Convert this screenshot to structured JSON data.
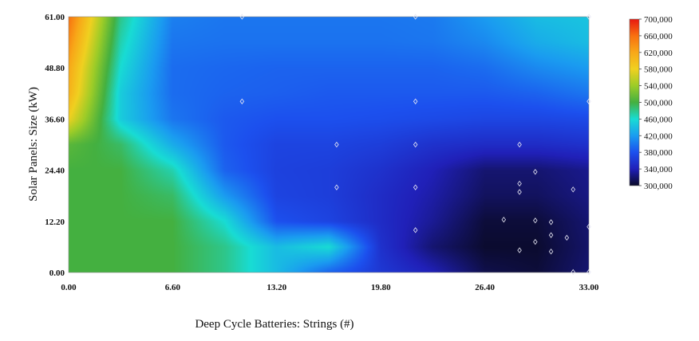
{
  "chart_data": {
    "type": "heatmap",
    "title": "",
    "xlabel": "Deep Cycle Batteries: Strings (#)",
    "ylabel": "Solar Panels: Size (kW)",
    "xlim": [
      0,
      33
    ],
    "ylim": [
      0,
      61
    ],
    "x_ticks": [
      "0.00",
      "6.60",
      "13.20",
      "19.80",
      "26.40",
      "33.00"
    ],
    "y_ticks": [
      "0.00",
      "12.20",
      "24.40",
      "36.60",
      "48.80",
      "61.00"
    ],
    "colorbar": {
      "range": [
        300000,
        700000
      ],
      "ticks": [
        "700,000",
        "660,000",
        "620,000",
        "580,000",
        "540,000",
        "500,000",
        "460,000",
        "420,000",
        "380,000",
        "340,000",
        "300,000"
      ],
      "stops": [
        {
          "value": 300000,
          "color": "#0a0a28"
        },
        {
          "value": 340000,
          "color": "#2020b8"
        },
        {
          "value": 380000,
          "color": "#1c50ee"
        },
        {
          "value": 420000,
          "color": "#1a9cf0"
        },
        {
          "value": 460000,
          "color": "#18dcd4"
        },
        {
          "value": 500000,
          "color": "#44b040"
        },
        {
          "value": 540000,
          "color": "#9ccc28"
        },
        {
          "value": 580000,
          "color": "#f0d020"
        },
        {
          "value": 620000,
          "color": "#f8a818"
        },
        {
          "value": 660000,
          "color": "#f87010"
        },
        {
          "value": 700000,
          "color": "#e81810"
        }
      ]
    },
    "grid_x": [
      0,
      3.3,
      6.6,
      9.9,
      13.2,
      16.5,
      19.8,
      23.1,
      26.4,
      29.7,
      33
    ],
    "grid_y": [
      0,
      6.1,
      12.2,
      18.3,
      24.4,
      30.5,
      36.6,
      42.7,
      48.8,
      54.9,
      61
    ],
    "z": [
      [
        500000,
        500000,
        500000,
        480000,
        440000,
        390000,
        360000,
        340000,
        310000,
        305000,
        320000
      ],
      [
        500000,
        500000,
        500000,
        480000,
        440000,
        460000,
        355000,
        320000,
        302000,
        302000,
        318000
      ],
      [
        500000,
        500000,
        500000,
        460000,
        380000,
        370000,
        350000,
        330000,
        305000,
        305000,
        320000
      ],
      [
        500000,
        500000,
        490000,
        420000,
        370000,
        365000,
        350000,
        335000,
        315000,
        315000,
        325000
      ],
      [
        500000,
        500000,
        470000,
        390000,
        368000,
        365000,
        355000,
        340000,
        320000,
        320000,
        328000
      ],
      [
        510000,
        490000,
        430000,
        385000,
        370000,
        370000,
        365000,
        355000,
        350000,
        350000,
        355000
      ],
      [
        580000,
        450000,
        400000,
        385000,
        380000,
        380000,
        378000,
        375000,
        372000,
        372000,
        375000
      ],
      [
        610000,
        450000,
        395000,
        390000,
        388000,
        385000,
        385000,
        385000,
        385000,
        390000,
        400000
      ],
      [
        620000,
        460000,
        395000,
        392000,
        390000,
        390000,
        390000,
        390000,
        395000,
        410000,
        420000
      ],
      [
        640000,
        470000,
        400000,
        398000,
        398000,
        398000,
        398000,
        400000,
        410000,
        430000,
        440000
      ],
      [
        660000,
        480000,
        405000,
        400000,
        400000,
        400000,
        400000,
        402000,
        420000,
        440000,
        445000
      ]
    ],
    "markers": [
      {
        "x": 11.0,
        "y": 61.0
      },
      {
        "x": 22.0,
        "y": 61.0
      },
      {
        "x": 33.0,
        "y": 61.0
      },
      {
        "x": 11.0,
        "y": 40.8
      },
      {
        "x": 22.0,
        "y": 40.8
      },
      {
        "x": 33.0,
        "y": 40.8
      },
      {
        "x": 17.0,
        "y": 30.5
      },
      {
        "x": 22.0,
        "y": 30.5
      },
      {
        "x": 28.6,
        "y": 30.5
      },
      {
        "x": 29.6,
        "y": 24.0
      },
      {
        "x": 17.0,
        "y": 20.3
      },
      {
        "x": 22.0,
        "y": 20.3
      },
      {
        "x": 28.6,
        "y": 21.2
      },
      {
        "x": 28.6,
        "y": 19.2
      },
      {
        "x": 32.0,
        "y": 19.8
      },
      {
        "x": 27.6,
        "y": 12.6
      },
      {
        "x": 29.6,
        "y": 12.4
      },
      {
        "x": 30.6,
        "y": 12.0
      },
      {
        "x": 22.0,
        "y": 10.1
      },
      {
        "x": 33.0,
        "y": 10.9
      },
      {
        "x": 30.6,
        "y": 8.9
      },
      {
        "x": 31.6,
        "y": 8.3
      },
      {
        "x": 29.6,
        "y": 7.3
      },
      {
        "x": 28.6,
        "y": 5.3
      },
      {
        "x": 30.6,
        "y": 5.0
      },
      {
        "x": 32.0,
        "y": 0.1
      },
      {
        "x": 33.0,
        "y": 0.1
      }
    ]
  }
}
